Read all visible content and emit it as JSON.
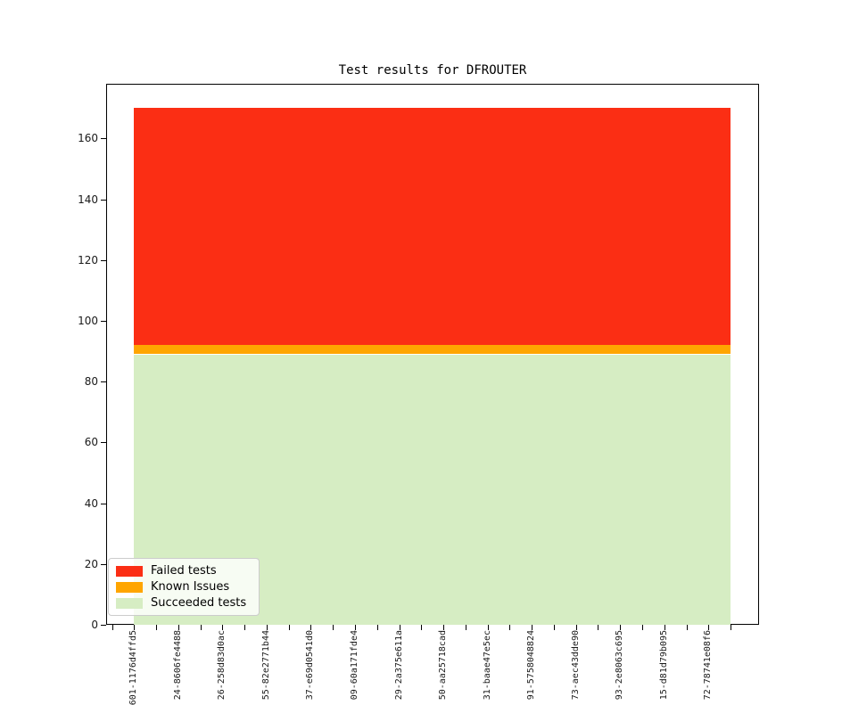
{
  "chart_data": {
    "type": "bar",
    "stacked": true,
    "title": "Test results for DFROUTER",
    "xlabel": "",
    "ylabel": "",
    "ylim": [
      0,
      178
    ],
    "yticks": [
      0,
      20,
      40,
      60,
      80,
      100,
      120,
      140,
      160
    ],
    "grid": false,
    "legend_position": "lower left",
    "n_bars": 28,
    "label_every_nth_tick": 2,
    "categories": [
      "601-1176d4ffd5",
      "24-8606fe4488",
      "26-258d83d0ac",
      "55-82e2771b44",
      "37-e69d0541d0",
      "09-60a171fde4",
      "29-2a375e611a",
      "50-aa25718cad",
      "31-baae47e5ec",
      "91-5758048824",
      "73-aec43dde90",
      "93-2e8063c695",
      "15-d81d79b095",
      "72-78741e08f6"
    ],
    "series": [
      {
        "name": "Failed tests",
        "color": "#fb2e14",
        "constant_value": 78,
        "values": [
          78,
          78,
          78,
          78,
          78,
          78,
          78,
          78,
          78,
          78,
          78,
          78,
          78,
          78
        ]
      },
      {
        "name": "Known Issues",
        "color": "#ffa500",
        "constant_value": 3,
        "values": [
          3,
          3,
          3,
          3,
          3,
          3,
          3,
          3,
          3,
          3,
          3,
          3,
          3,
          3
        ]
      },
      {
        "name": "Succeeded tests",
        "color": "#d6edc3",
        "constant_value": 89,
        "values": [
          89,
          89,
          89,
          89,
          89,
          89,
          89,
          89,
          89,
          89,
          89,
          89,
          89,
          89
        ]
      }
    ]
  }
}
